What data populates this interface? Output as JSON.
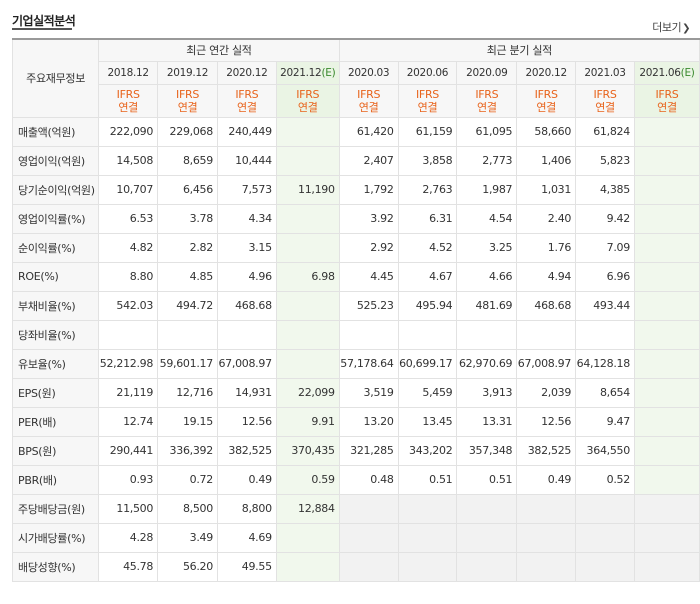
{
  "header": {
    "title": "기업실적분석",
    "more_label": "더보기"
  },
  "table": {
    "corner_label": "주요재무정보",
    "groups": {
      "annual": "최근 연간 실적",
      "quarterly": "최근 분기 실적"
    },
    "columns": [
      {
        "date": "2018.12",
        "est": "",
        "acct": [
          "IFRS",
          "연결"
        ]
      },
      {
        "date": "2019.12",
        "est": "",
        "acct": [
          "IFRS",
          "연결"
        ]
      },
      {
        "date": "2020.12",
        "est": "",
        "acct": [
          "IFRS",
          "연결"
        ]
      },
      {
        "date": "2021.12",
        "est": "(E)",
        "acct": [
          "IFRS",
          "연결"
        ]
      },
      {
        "date": "2020.03",
        "est": "",
        "acct": [
          "IFRS",
          "연결"
        ]
      },
      {
        "date": "2020.06",
        "est": "",
        "acct": [
          "IFRS",
          "연결"
        ]
      },
      {
        "date": "2020.09",
        "est": "",
        "acct": [
          "IFRS",
          "연결"
        ]
      },
      {
        "date": "2020.12",
        "est": "",
        "acct": [
          "IFRS",
          "연결"
        ]
      },
      {
        "date": "2021.03",
        "est": "",
        "acct": [
          "IFRS",
          "연결"
        ]
      },
      {
        "date": "2021.06",
        "est": "(E)",
        "acct": [
          "IFRS",
          "연결"
        ]
      }
    ],
    "rows": [
      {
        "label": "매출액(억원)",
        "values": [
          "222,090",
          "229,068",
          "240,449",
          "",
          "61,420",
          "61,159",
          "61,095",
          "58,660",
          "61,824",
          ""
        ]
      },
      {
        "label": "영업이익(억원)",
        "values": [
          "14,508",
          "8,659",
          "10,444",
          "",
          "2,407",
          "3,858",
          "2,773",
          "1,406",
          "5,823",
          ""
        ]
      },
      {
        "label": "당기순이익(억원)",
        "values": [
          "10,707",
          "6,456",
          "7,573",
          "11,190",
          "1,792",
          "2,763",
          "1,987",
          "1,031",
          "4,385",
          ""
        ]
      },
      {
        "label": "영업이익률(%)",
        "values": [
          "6.53",
          "3.78",
          "4.34",
          "",
          "3.92",
          "6.31",
          "4.54",
          "2.40",
          "9.42",
          ""
        ]
      },
      {
        "label": "순이익률(%)",
        "values": [
          "4.82",
          "2.82",
          "3.15",
          "",
          "2.92",
          "4.52",
          "3.25",
          "1.76",
          "7.09",
          ""
        ]
      },
      {
        "label": "ROE(%)",
        "values": [
          "8.80",
          "4.85",
          "4.96",
          "6.98",
          "4.45",
          "4.67",
          "4.66",
          "4.94",
          "6.96",
          ""
        ]
      },
      {
        "label": "부채비율(%)",
        "values": [
          "542.03",
          "494.72",
          "468.68",
          "",
          "525.23",
          "495.94",
          "481.69",
          "468.68",
          "493.44",
          ""
        ]
      },
      {
        "label": "당좌비율(%)",
        "values": [
          "",
          "",
          "",
          "",
          "",
          "",
          "",
          "",
          "",
          ""
        ]
      },
      {
        "label": "유보율(%)",
        "values": [
          "52,212.98",
          "59,601.17",
          "67,008.97",
          "",
          "57,178.64",
          "60,699.17",
          "62,970.69",
          "67,008.97",
          "64,128.18",
          ""
        ]
      },
      {
        "label": "EPS(원)",
        "values": [
          "21,119",
          "12,716",
          "14,931",
          "22,099",
          "3,519",
          "5,459",
          "3,913",
          "2,039",
          "8,654",
          ""
        ]
      },
      {
        "label": "PER(배)",
        "values": [
          "12.74",
          "19.15",
          "12.56",
          "9.91",
          "13.20",
          "13.45",
          "13.31",
          "12.56",
          "9.47",
          ""
        ]
      },
      {
        "label": "BPS(원)",
        "values": [
          "290,441",
          "336,392",
          "382,525",
          "370,435",
          "321,285",
          "343,202",
          "357,348",
          "382,525",
          "364,550",
          ""
        ]
      },
      {
        "label": "PBR(배)",
        "values": [
          "0.93",
          "0.72",
          "0.49",
          "0.59",
          "0.48",
          "0.51",
          "0.51",
          "0.49",
          "0.52",
          ""
        ]
      },
      {
        "label": "주당배당금(원)",
        "values": [
          "11,500",
          "8,500",
          "8,800",
          "12,884",
          "",
          "",
          "",
          "",
          "",
          ""
        ]
      },
      {
        "label": "시가배당률(%)",
        "values": [
          "4.28",
          "3.49",
          "4.69",
          "",
          "",
          "",
          "",
          "",
          "",
          ""
        ]
      },
      {
        "label": "배당성향(%)",
        "values": [
          "45.78",
          "56.20",
          "49.55",
          "",
          "",
          "",
          "",
          "",
          "",
          ""
        ]
      }
    ]
  }
}
